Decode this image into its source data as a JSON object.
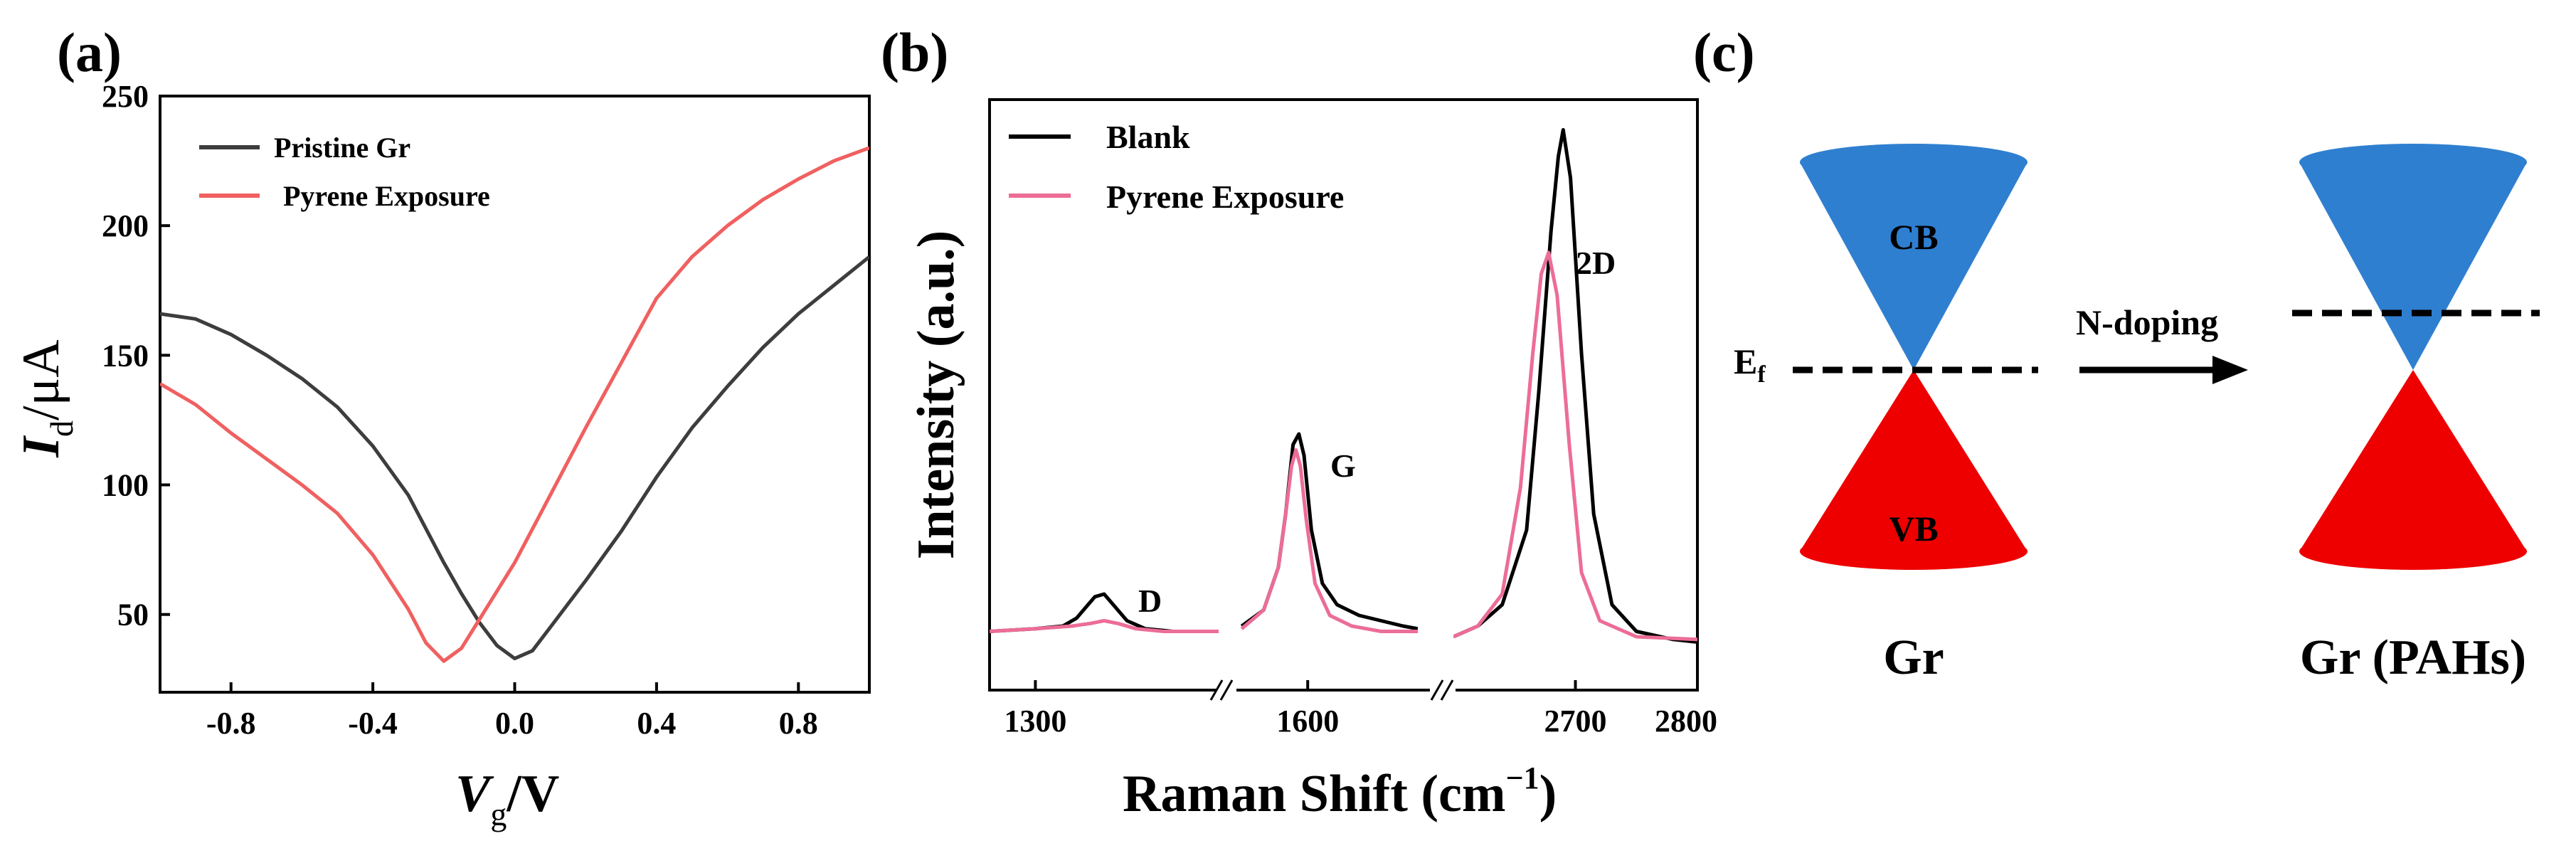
{
  "colors": {
    "pristine": "#3d3d3d",
    "pyrene_a": "#f06060",
    "blank": "#000000",
    "pyrene_b": "#ec6d96",
    "cb": "#2f7fd0",
    "vb": "#ee0000"
  },
  "chart_data": [
    {
      "panel": "(a)",
      "type": "line",
      "xlabel_main": "V",
      "xlabel_sub": "g",
      "xlabel_unit": "/V",
      "ylabel_main": "I",
      "ylabel_sub": "d",
      "ylabel_unit": "/μA",
      "xlim": [
        -1.0,
        1.0
      ],
      "ylim": [
        20,
        250
      ],
      "xticks": [
        -0.8,
        -0.4,
        0.0,
        0.4,
        0.8
      ],
      "xtick_labels": [
        "-0.8",
        "-0.4",
        "0.0",
        "0.4",
        "0.8"
      ],
      "yticks": [
        50,
        100,
        150,
        200,
        250
      ],
      "ytick_labels": [
        "50",
        "100",
        "150",
        "200",
        "250"
      ],
      "legend": "top-left",
      "series": [
        {
          "name": "Pristine Gr",
          "x": [
            -1.0,
            -0.9,
            -0.8,
            -0.7,
            -0.6,
            -0.5,
            -0.4,
            -0.3,
            -0.2,
            -0.15,
            -0.1,
            -0.05,
            0.0,
            0.05,
            0.1,
            0.2,
            0.3,
            0.4,
            0.5,
            0.6,
            0.7,
            0.8,
            0.9,
            1.0
          ],
          "y": [
            166,
            164,
            158,
            150,
            141,
            130,
            115,
            96,
            70,
            58,
            47,
            38,
            33,
            36,
            45,
            63,
            82,
            103,
            122,
            138,
            153,
            166,
            177,
            188
          ]
        },
        {
          "name": "Pyrene Exposure",
          "x": [
            -1.0,
            -0.9,
            -0.8,
            -0.7,
            -0.6,
            -0.5,
            -0.4,
            -0.3,
            -0.25,
            -0.2,
            -0.15,
            -0.1,
            0.0,
            0.1,
            0.2,
            0.3,
            0.4,
            0.5,
            0.6,
            0.7,
            0.8,
            0.9,
            1.0
          ],
          "y": [
            139,
            131,
            120,
            110,
            100,
            89,
            73,
            52,
            39,
            32,
            37,
            48,
            70,
            96,
            122,
            147,
            172,
            188,
            200,
            210,
            218,
            225,
            230
          ]
        }
      ]
    },
    {
      "panel": "(b)",
      "type": "line",
      "xlabel_main": "Raman Shift (cm",
      "xlabel_sup": "−1",
      "xlabel_close": ")",
      "ylabel": "Intensity (a.u.)",
      "xtick_labels": [
        "1300",
        "1600",
        "2700",
        "2800"
      ],
      "legend": "top-left",
      "peaks": [
        "D",
        "G",
        "2D"
      ],
      "segments": [
        {
          "range": [
            1250,
            1500
          ]
        },
        {
          "range": [
            1500,
            1750
          ]
        },
        {
          "range": [
            2600,
            2800
          ]
        }
      ],
      "ylim": [
        0,
        1.0
      ],
      "series": [
        {
          "name": "Blank",
          "x": [
            1250,
            1300,
            1330,
            1345,
            1355,
            1365,
            1375,
            1385,
            1400,
            1420,
            1450,
            1480,
            1500,
            1510,
            1540,
            1560,
            1570,
            1580,
            1588,
            1595,
            1605,
            1620,
            1640,
            1670,
            1700,
            1730,
            1750,
            2600,
            2620,
            2640,
            2660,
            2670,
            2680,
            2686,
            2690,
            2696,
            2705,
            2715,
            2730,
            2750,
            2780,
            2800
          ],
          "y": [
            0.03,
            0.035,
            0.04,
            0.055,
            0.075,
            0.095,
            0.1,
            0.08,
            0.05,
            0.035,
            0.03,
            0.03,
            0.03,
            0.04,
            0.07,
            0.15,
            0.25,
            0.38,
            0.4,
            0.36,
            0.22,
            0.12,
            0.08,
            0.06,
            0.05,
            0.04,
            0.035,
            0.02,
            0.04,
            0.08,
            0.22,
            0.48,
            0.78,
            0.92,
            0.97,
            0.88,
            0.55,
            0.25,
            0.08,
            0.03,
            0.015,
            0.01
          ]
        },
        {
          "name": "Pyrene Exposure",
          "x": [
            1250,
            1300,
            1340,
            1360,
            1375,
            1390,
            1410,
            1440,
            1470,
            1500,
            1510,
            1540,
            1560,
            1570,
            1578,
            1584,
            1590,
            1598,
            1610,
            1630,
            1660,
            1700,
            1750,
            2600,
            2620,
            2640,
            2655,
            2665,
            2672,
            2678,
            2685,
            2695,
            2705,
            2720,
            2750,
            2800
          ],
          "y": [
            0.03,
            0.035,
            0.04,
            0.045,
            0.05,
            0.045,
            0.035,
            0.03,
            0.03,
            0.03,
            0.035,
            0.07,
            0.15,
            0.25,
            0.34,
            0.37,
            0.34,
            0.24,
            0.12,
            0.06,
            0.04,
            0.03,
            0.03,
            0.02,
            0.04,
            0.1,
            0.3,
            0.55,
            0.7,
            0.74,
            0.66,
            0.38,
            0.14,
            0.05,
            0.02,
            0.015
          ]
        }
      ]
    }
  ],
  "diagram": {
    "panel": "(c)",
    "left": {
      "cb": "CB",
      "vb": "VB",
      "ef_main": "E",
      "ef_sub": "f",
      "caption": "Gr"
    },
    "arrow": "N-doping",
    "right": {
      "caption": "Gr (PAHs)"
    }
  }
}
